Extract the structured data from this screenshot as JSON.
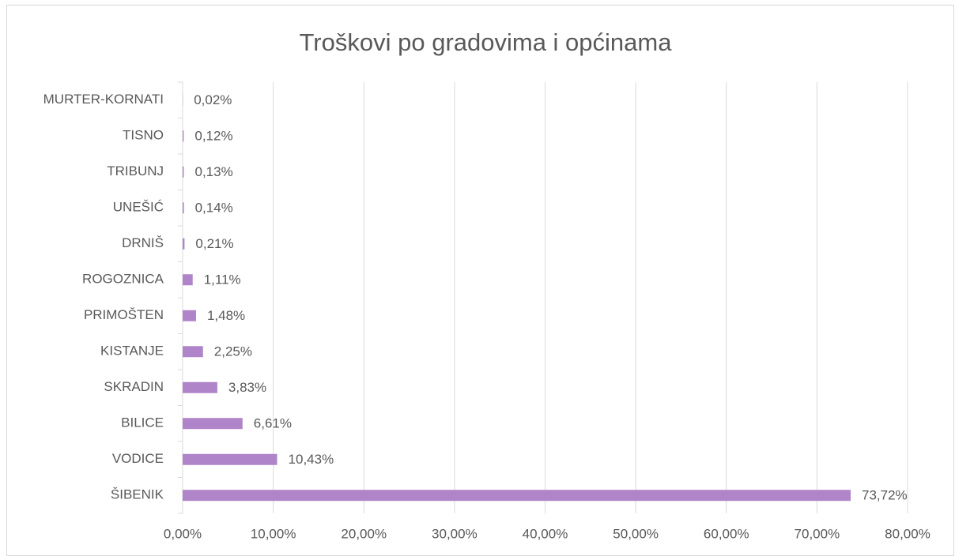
{
  "chart_data": {
    "type": "bar",
    "orientation": "horizontal",
    "title": "Troškovi po gradovima i općinama",
    "categories": [
      "MURTER-KORNATI",
      "TISNO",
      "TRIBUNJ",
      "UNEŠIĆ",
      "DRNIŠ",
      "ROGOZNICA",
      "PRIMOŠTEN",
      "KISTANJE",
      "SKRADIN",
      "BILICE",
      "VODICE",
      "ŠIBENIK"
    ],
    "values": [
      0.02,
      0.12,
      0.13,
      0.14,
      0.21,
      1.11,
      1.48,
      2.25,
      3.83,
      6.61,
      10.43,
      73.72
    ],
    "value_labels": [
      "0,02%",
      "0,12%",
      "0,13%",
      "0,14%",
      "0,21%",
      "1,11%",
      "1,48%",
      "2,25%",
      "3,83%",
      "6,61%",
      "10,43%",
      "73,72%"
    ],
    "color": "#b084c9",
    "xlim": [
      0,
      80
    ],
    "xticks": [
      {
        "value": 0,
        "label": "0,00%"
      },
      {
        "value": 10,
        "label": "10,00%"
      },
      {
        "value": 20,
        "label": "20,00%"
      },
      {
        "value": 30,
        "label": "30,00%"
      },
      {
        "value": 40,
        "label": "40,00%"
      },
      {
        "value": 50,
        "label": "50,00%"
      },
      {
        "value": 60,
        "label": "60,00%"
      },
      {
        "value": 70,
        "label": "70,00%"
      },
      {
        "value": 80,
        "label": "80,00%"
      }
    ],
    "grid": true
  }
}
